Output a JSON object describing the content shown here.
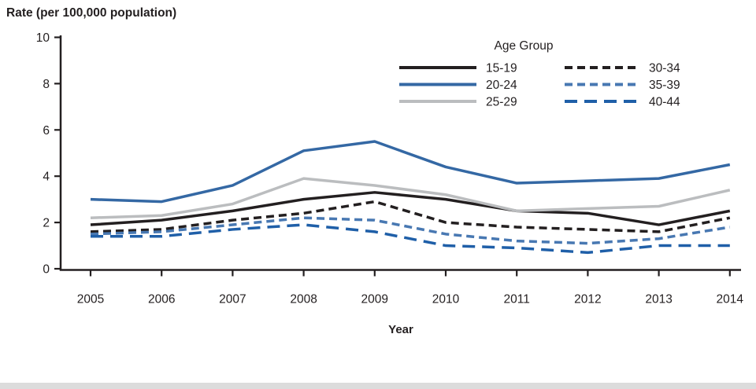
{
  "title": "Rate (per 100,000 population)",
  "chart_data": {
    "type": "line",
    "x": [
      2005,
      2006,
      2007,
      2008,
      2009,
      2010,
      2011,
      2012,
      2013,
      2014
    ],
    "xlabel": "Year",
    "ylabel": "Rate (per 100,000 population)",
    "ylim": [
      0,
      10
    ],
    "yticks": [
      0,
      2,
      4,
      6,
      8,
      10
    ],
    "grid": false,
    "legend_title": "Age Group",
    "legend_position": "top-right-inside",
    "ink_color": "#231f20",
    "series": [
      {
        "name": "15-19",
        "color": "#231f20",
        "dash": "solid",
        "values": [
          1.9,
          2.1,
          2.5,
          3.0,
          3.3,
          3.0,
          2.5,
          2.4,
          1.9,
          2.5
        ]
      },
      {
        "name": "20-24",
        "color": "#3468a4",
        "dash": "solid",
        "values": [
          3.0,
          2.9,
          3.6,
          5.1,
          5.5,
          4.4,
          3.7,
          3.8,
          3.9,
          4.5
        ]
      },
      {
        "name": "25-29",
        "color": "#bbbdbf",
        "dash": "solid",
        "values": [
          2.2,
          2.3,
          2.8,
          3.9,
          3.6,
          3.2,
          2.5,
          2.6,
          2.7,
          3.4
        ]
      },
      {
        "name": "30-34",
        "color": "#231f20",
        "dash": "short",
        "values": [
          1.6,
          1.7,
          2.1,
          2.4,
          2.9,
          2.0,
          1.8,
          1.7,
          1.6,
          2.2
        ]
      },
      {
        "name": "35-39",
        "color": "#4878b2",
        "dash": "short",
        "values": [
          1.5,
          1.6,
          1.9,
          2.2,
          2.1,
          1.5,
          1.2,
          1.1,
          1.3,
          1.8
        ]
      },
      {
        "name": "40-44",
        "color": "#1f5fa8",
        "dash": "long",
        "values": [
          1.4,
          1.4,
          1.7,
          1.9,
          1.6,
          1.0,
          0.9,
          0.7,
          1.0,
          1.0
        ]
      }
    ]
  }
}
